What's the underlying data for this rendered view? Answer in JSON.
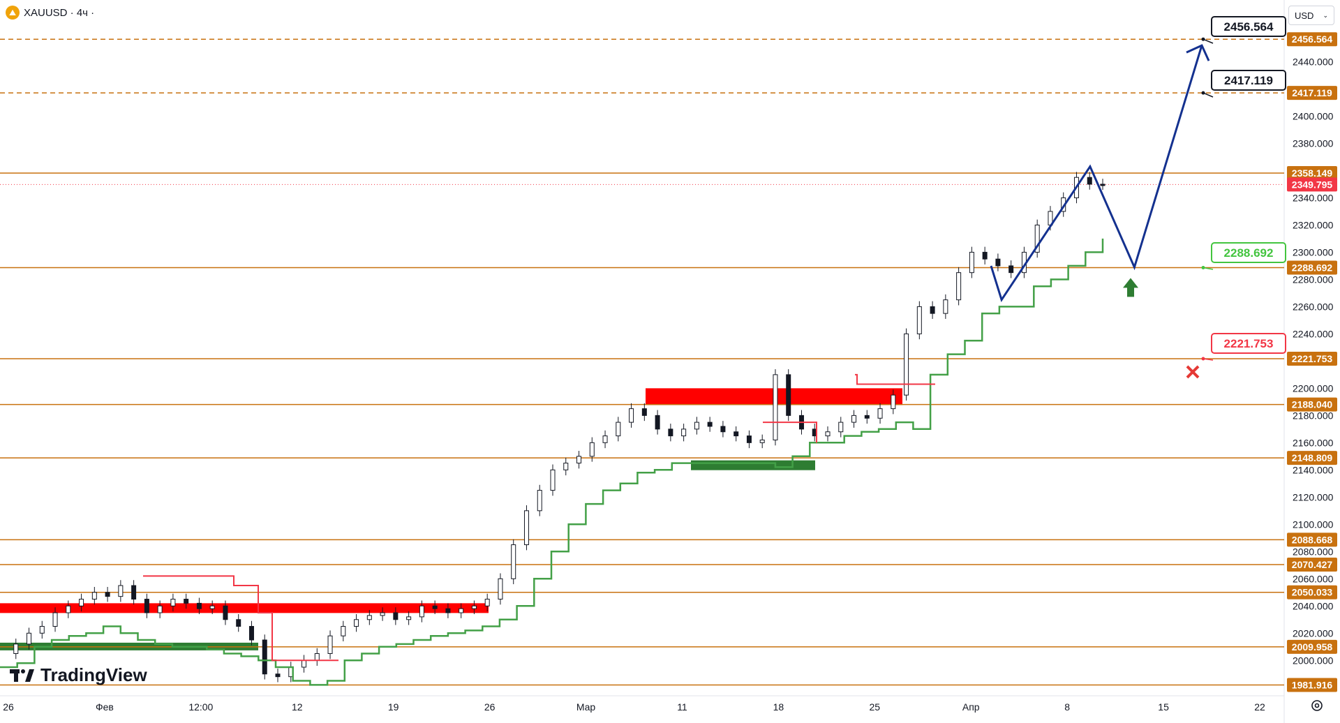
{
  "header": {
    "symbol": "XAUUSD · 4ч ·",
    "currency": "USD"
  },
  "brand": {
    "name": "TradingView"
  },
  "colors": {
    "level_line": "#c8710f",
    "price_label_bg": "#c8710f",
    "current_price_bg": "#f23645",
    "projection": "#14318f",
    "support_trail": "#43a047",
    "resistance_trail": "#f23645",
    "resistance_zone": "#ff0000",
    "support_zone": "#2e7d32"
  },
  "chart_data": {
    "type": "candlestick",
    "symbol": "XAUUSD",
    "timeframe": "4ч",
    "y_range": [
      1975,
      2470
    ],
    "price_axis_ticks": [
      "2440.000",
      "2400.000",
      "2380.000",
      "2340.000",
      "2320.000",
      "2300.000",
      "2280.000",
      "2260.000",
      "2240.000",
      "2200.000",
      "2180.000",
      "2160.000",
      "2140.000",
      "2120.000",
      "2100.000",
      "2080.000",
      "2060.000",
      "2040.000",
      "2020.000",
      "2000.000"
    ],
    "x_axis_labels": [
      "26",
      "Фев",
      "12:00",
      "12",
      "19",
      "26",
      "Мар",
      "11",
      "18",
      "25",
      "Апр",
      "8",
      "15",
      "22"
    ],
    "horizontal_levels": [
      {
        "value": 2456.564,
        "label": "2456.564",
        "style": "dashed"
      },
      {
        "value": 2417.119,
        "label": "2417.119",
        "style": "dashed"
      },
      {
        "value": 2358.149,
        "label": "2358.149",
        "style": "solid"
      },
      {
        "value": 2288.692,
        "label": "2288.692",
        "style": "solid"
      },
      {
        "value": 2221.753,
        "label": "2221.753",
        "style": "solid"
      },
      {
        "value": 2188.04,
        "label": "2188.040",
        "style": "solid"
      },
      {
        "value": 2148.809,
        "label": "2148.809",
        "style": "solid"
      },
      {
        "value": 2088.668,
        "label": "2088.668",
        "style": "solid"
      },
      {
        "value": 2070.427,
        "label": "2070.427",
        "style": "solid"
      },
      {
        "value": 2050.033,
        "label": "2050.033",
        "style": "solid"
      },
      {
        "value": 2009.958,
        "label": "2009.958",
        "style": "solid"
      },
      {
        "value": 1981.916,
        "label": "1981.916",
        "style": "solid"
      }
    ],
    "current_price": {
      "value": 2349.795,
      "label": "2349.795"
    },
    "callouts": [
      {
        "label": "2456.564",
        "value": 2456.564,
        "kind": "target"
      },
      {
        "label": "2417.119",
        "value": 2417.119,
        "kind": "target"
      },
      {
        "label": "2288.692",
        "value": 2288.692,
        "kind": "entry"
      },
      {
        "label": "2221.753",
        "value": 2221.753,
        "kind": "stop"
      }
    ],
    "price_path": [
      2005,
      2012,
      2020,
      2025,
      2035,
      2040,
      2045,
      2050,
      2047,
      2055,
      2045,
      2035,
      2040,
      2045,
      2042,
      2038,
      2040,
      2030,
      2025,
      2015,
      1990,
      1988,
      1995,
      2000,
      2005,
      2018,
      2025,
      2030,
      2033,
      2035,
      2030,
      2032,
      2040,
      2038,
      2035,
      2038,
      2040,
      2045,
      2060,
      2085,
      2110,
      2125,
      2140,
      2145,
      2150,
      2160,
      2165,
      2175,
      2185,
      2180,
      2170,
      2165,
      2170,
      2175,
      2172,
      2168,
      2165,
      2160,
      2162,
      2210,
      2180,
      2170,
      2165,
      2168,
      2175,
      2180,
      2178,
      2185,
      2195,
      2240,
      2260,
      2255,
      2265,
      2285,
      2300,
      2295,
      2290,
      2285,
      2300,
      2320,
      2330,
      2340,
      2355,
      2350,
      2349.795
    ],
    "support_trail": [
      1995,
      1998,
      2010,
      2015,
      2018,
      2020,
      2025,
      2020,
      2015,
      2012,
      2010,
      2010,
      2008,
      2005,
      2003,
      2000,
      1995,
      1985,
      1982,
      1985,
      2000,
      2005,
      2010,
      2012,
      2015,
      2018,
      2020,
      2022,
      2025,
      2030,
      2040,
      2060,
      2080,
      2100,
      2115,
      2125,
      2130,
      2138,
      2140,
      2145,
      2145,
      2145,
      2145,
      2145,
      2145,
      2142,
      2150,
      2160,
      2160,
      2165,
      2168,
      2170,
      2175,
      2170,
      2210,
      2225,
      2235,
      2255,
      2260,
      2260,
      2275,
      2280,
      2290,
      2300,
      2310
    ],
    "projection": [
      {
        "t": 0.0,
        "price": 2290
      },
      {
        "t": 0.05,
        "price": 2265
      },
      {
        "t": 0.47,
        "price": 2363
      },
      {
        "t": 0.68,
        "price": 2289
      },
      {
        "t": 1.0,
        "price": 2452
      }
    ]
  }
}
